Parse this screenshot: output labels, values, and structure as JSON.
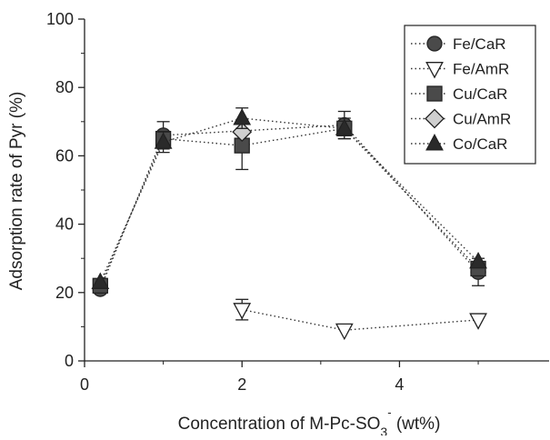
{
  "chart_data": {
    "type": "scatter",
    "xlabel_main": "Concentration of M-Pc-SO",
    "xlabel_sub": "3",
    "xlabel_sup": "-",
    "xlabel_unit": " (wt%)",
    "ylabel": "Adsorption rate of Pyr (%)",
    "xlim": [
      0,
      5.9
    ],
    "ylim": [
      0,
      100
    ],
    "xticks": [
      0,
      2,
      4
    ],
    "yticks": [
      0,
      20,
      40,
      60,
      80,
      100
    ],
    "grid": false,
    "legend_position": "top-right",
    "series": [
      {
        "name": "Fe/CaR",
        "marker": "circle",
        "fill": "#4a4a4a",
        "x": [
          0.2,
          1.0,
          3.3,
          5.0
        ],
        "y": [
          21,
          66,
          69,
          26
        ],
        "err": [
          0,
          4,
          4,
          4
        ]
      },
      {
        "name": "Fe/AmR",
        "marker": "triangle-down",
        "fill": "#ffffff",
        "x": [
          2.0,
          3.3,
          5.0
        ],
        "y": [
          15,
          9,
          12
        ],
        "err": [
          3,
          0,
          0
        ]
      },
      {
        "name": "Cu/CaR",
        "marker": "square",
        "fill": "#4a4a4a",
        "x": [
          0.2,
          1.0,
          2.0,
          3.3,
          5.0
        ],
        "y": [
          22,
          65,
          63,
          68,
          27
        ],
        "err": [
          0,
          0,
          7,
          0,
          0
        ]
      },
      {
        "name": "Cu/AmR",
        "marker": "diamond",
        "fill": "#cfcfcf",
        "x": [
          2.0
        ],
        "y": [
          67
        ],
        "err": [
          0
        ]
      },
      {
        "name": "Co/CaR",
        "marker": "triangle-up",
        "fill": "#2a2a2a",
        "x": [
          0.2,
          1.0,
          2.0,
          3.3,
          5.0
        ],
        "y": [
          23,
          64,
          71,
          68,
          29
        ],
        "err": [
          0,
          3,
          3,
          3,
          0
        ]
      }
    ]
  }
}
